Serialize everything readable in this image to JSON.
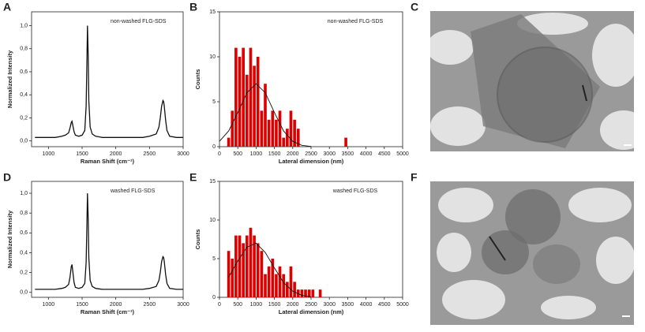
{
  "panel_labels": [
    "A",
    "B",
    "C",
    "D",
    "E",
    "F"
  ],
  "chart_data": [
    {
      "type": "line",
      "xlabel": "Raman Shift (cm⁻¹)",
      "ylabel": "Normalized Intensity",
      "annotation": "non-washed FLG-SDS",
      "color": "#111111",
      "x": [
        800,
        900,
        1000,
        1100,
        1200,
        1250,
        1300,
        1320,
        1340,
        1350,
        1360,
        1380,
        1400,
        1450,
        1500,
        1540,
        1560,
        1570,
        1580,
        1590,
        1600,
        1620,
        1650,
        1700,
        1800,
        1900,
        2000,
        2100,
        2200,
        2300,
        2400,
        2500,
        2600,
        2640,
        2660,
        2680,
        2700,
        2710,
        2720,
        2740,
        2760,
        2800,
        2900,
        3000
      ],
      "values": [
        0.03,
        0.03,
        0.03,
        0.03,
        0.04,
        0.05,
        0.07,
        0.11,
        0.16,
        0.17,
        0.14,
        0.08,
        0.05,
        0.04,
        0.05,
        0.09,
        0.3,
        0.65,
        1.0,
        0.75,
        0.35,
        0.12,
        0.06,
        0.04,
        0.03,
        0.03,
        0.03,
        0.03,
        0.03,
        0.03,
        0.03,
        0.04,
        0.06,
        0.12,
        0.2,
        0.3,
        0.35,
        0.34,
        0.3,
        0.18,
        0.09,
        0.04,
        0.03,
        0.03
      ],
      "xlim": [
        750,
        3000
      ],
      "xticks": [
        1000,
        1500,
        2000,
        2500,
        3000
      ],
      "ylim": [
        -0.05,
        1.12
      ],
      "yticks": [
        {
          "value": 0,
          "label": "0,0"
        },
        {
          "value": 0.2,
          "label": "0,2"
        },
        {
          "value": 0.4,
          "label": "0,4"
        },
        {
          "value": 0.6,
          "label": "0,6"
        },
        {
          "value": 0.8,
          "label": "0,8"
        },
        {
          "value": 1.0,
          "label": "1,0"
        }
      ]
    },
    {
      "type": "histogram",
      "xlabel": "Lateral dimension (nm)",
      "ylabel": "Counts",
      "annotation": "non-washed FLG-SDS",
      "color": "#dd0000",
      "bins": [
        200,
        300,
        400,
        500,
        600,
        700,
        800,
        900,
        1000,
        1100,
        1200,
        1300,
        1400,
        1500,
        1600,
        1700,
        1800,
        1900,
        2000,
        2100,
        2200,
        2300,
        2400,
        2500,
        2600,
        2700,
        2800,
        2900,
        3000,
        3100,
        3200,
        3300,
        3400,
        3500
      ],
      "values": [
        1,
        4,
        11,
        10,
        11,
        8,
        11,
        9,
        10,
        4,
        7,
        3,
        4,
        3,
        4,
        1,
        2,
        4,
        3,
        2,
        0,
        0,
        0,
        0,
        0,
        0,
        0,
        0,
        0,
        0,
        0,
        0,
        1
      ],
      "fit": {
        "x": [
          0,
          250,
          500,
          750,
          1000,
          1250,
          1500,
          1750,
          2000,
          2250,
          2500
        ],
        "values": [
          0.6,
          1.75,
          3.8,
          6.0,
          7.0,
          6.0,
          3.8,
          1.75,
          0.6,
          0.15,
          0.03
        ],
        "color": "#111111"
      },
      "xlim": [
        0,
        5000
      ],
      "xticks": [
        0,
        500,
        1000,
        1500,
        2000,
        2500,
        3000,
        3500,
        4000,
        4500,
        5000
      ],
      "ylim": [
        0,
        15
      ],
      "yticks": [
        0,
        5,
        10,
        15
      ]
    },
    {
      "type": "line",
      "xlabel": "Raman Shift (cm⁻¹)",
      "ylabel": "Normalized Intensity",
      "annotation": "washed FLG-SDS",
      "color": "#111111",
      "x": [
        800,
        900,
        1000,
        1100,
        1200,
        1250,
        1300,
        1320,
        1340,
        1350,
        1360,
        1380,
        1400,
        1450,
        1500,
        1540,
        1560,
        1570,
        1580,
        1590,
        1600,
        1620,
        1650,
        1700,
        1800,
        1900,
        2000,
        2100,
        2200,
        2300,
        2400,
        2500,
        2600,
        2640,
        2660,
        2680,
        2700,
        2710,
        2720,
        2740,
        2760,
        2800,
        2900,
        3000
      ],
      "values": [
        0.03,
        0.03,
        0.03,
        0.03,
        0.04,
        0.05,
        0.08,
        0.15,
        0.26,
        0.28,
        0.22,
        0.1,
        0.05,
        0.04,
        0.05,
        0.09,
        0.3,
        0.65,
        1.0,
        0.75,
        0.35,
        0.12,
        0.06,
        0.04,
        0.03,
        0.03,
        0.03,
        0.03,
        0.03,
        0.03,
        0.03,
        0.04,
        0.06,
        0.12,
        0.2,
        0.31,
        0.36,
        0.35,
        0.31,
        0.18,
        0.09,
        0.04,
        0.03,
        0.03
      ],
      "xlim": [
        750,
        3000
      ],
      "xticks": [
        1000,
        1500,
        2000,
        2500,
        3000
      ],
      "ylim": [
        -0.05,
        1.12
      ],
      "yticks": [
        {
          "value": 0,
          "label": "0,0"
        },
        {
          "value": 0.2,
          "label": "0,2"
        },
        {
          "value": 0.4,
          "label": "0,4"
        },
        {
          "value": 0.6,
          "label": "0,6"
        },
        {
          "value": 0.8,
          "label": "0,8"
        },
        {
          "value": 1.0,
          "label": "1,0"
        }
      ]
    },
    {
      "type": "histogram",
      "xlabel": "Lateral dimension (nm)",
      "ylabel": "Counts",
      "annotation": "washed FLG-SDS",
      "color": "#dd0000",
      "bins": [
        200,
        300,
        400,
        500,
        600,
        700,
        800,
        900,
        1000,
        1100,
        1200,
        1300,
        1400,
        1500,
        1600,
        1700,
        1800,
        1900,
        2000,
        2100,
        2200,
        2300,
        2400,
        2500,
        2600,
        2700,
        2800
      ],
      "values": [
        6,
        5,
        8,
        8,
        7,
        8,
        9,
        8,
        7,
        6,
        3,
        4,
        5,
        3,
        4,
        3,
        2,
        4,
        2,
        1,
        1,
        1,
        1,
        1,
        0,
        1
      ],
      "fit": {
        "x": [
          250,
          500,
          750,
          1000,
          1250,
          1500,
          1750,
          2000,
          2250,
          2500
        ],
        "values": [
          2.6,
          4.7,
          6.5,
          7.0,
          5.8,
          3.8,
          1.9,
          0.8,
          0.24,
          0.06
        ],
        "color": "#111111"
      },
      "xlim": [
        0,
        5000
      ],
      "xticks": [
        0,
        500,
        1000,
        1500,
        2000,
        2500,
        3000,
        3500,
        4000,
        4500,
        5000
      ],
      "ylim": [
        0,
        15
      ],
      "yticks": [
        0,
        5,
        10,
        15
      ]
    }
  ]
}
